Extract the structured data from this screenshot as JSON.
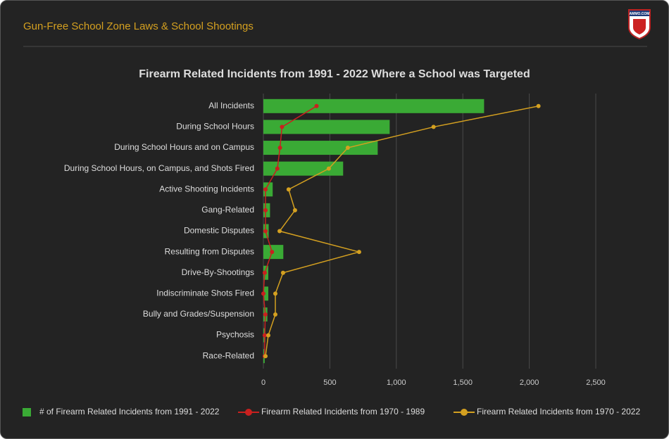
{
  "header": {
    "title": "Gun-Free School Zone Laws & School Shootings",
    "logo_text": "AMMO.COM"
  },
  "chart_data": {
    "type": "bar",
    "orientation": "horizontal",
    "title": "Firearm Related Incidents from 1991 - 2022 Where a School was Targeted",
    "categories": [
      "All Incidents",
      "During School Hours",
      "During School Hours and on Campus",
      "During School Hours, on Campus, and Shots Fired",
      "Active Shooting Incidents",
      "Gang-Related",
      "Domestic Disputes",
      "Resulting from Disputes",
      "Drive-By-Shootings",
      "Indiscriminate Shots Fired",
      "Bully and Grades/Suspension",
      "Psychosis",
      "Race-Related"
    ],
    "series": [
      {
        "name": "# of Firearm Related Incidents from 1991 - 2022",
        "type": "bar",
        "color": "#3aaa35",
        "values": [
          1660,
          950,
          860,
          600,
          70,
          50,
          40,
          150,
          37,
          37,
          30,
          15,
          10
        ]
      },
      {
        "name": "Firearm Related Incidents from 1970 - 1989",
        "type": "line",
        "color": "#c9201f",
        "values": [
          400,
          140,
          125,
          105,
          16,
          16,
          16,
          65,
          10,
          0,
          15,
          10,
          10
        ]
      },
      {
        "name": "Firearm Related Incidents from 1970 - 2022",
        "type": "line",
        "color": "#d4a020",
        "values": [
          2069,
          1280,
          635,
          492,
          190,
          238,
          122,
          720,
          148,
          90,
          90,
          37,
          16
        ]
      }
    ],
    "xlim": [
      0,
      2500
    ],
    "xticks": [
      0,
      500,
      {
        "value": 1000,
        "label": "1,000"
      },
      {
        "value": 1500,
        "label": "1,500"
      },
      {
        "value": 2000,
        "label": "2,000"
      },
      {
        "value": 2500,
        "label": "2,500"
      }
    ],
    "grid": true
  }
}
